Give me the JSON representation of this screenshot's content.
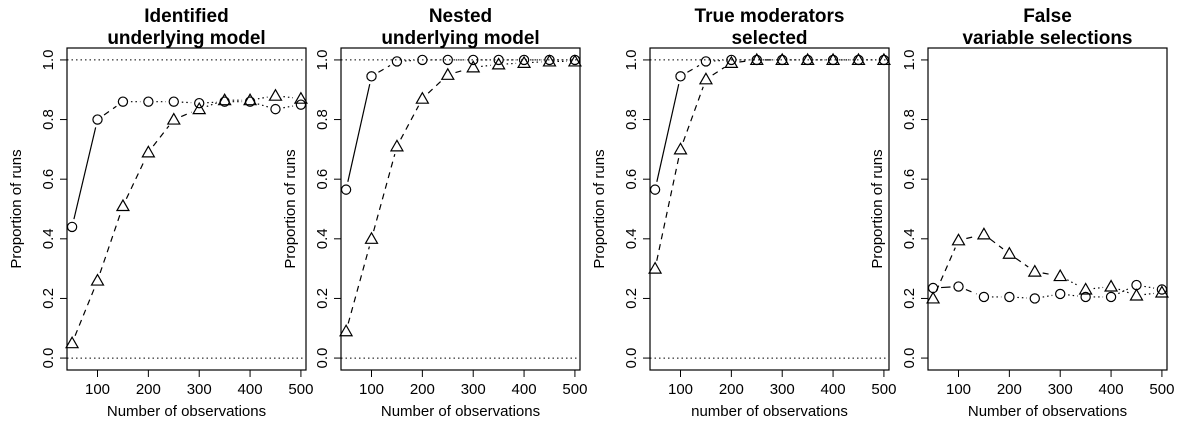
{
  "chart_data": [
    {
      "type": "line",
      "title_lines": [
        "Identified",
        "underlying model"
      ],
      "xlabel": "Number of observations",
      "ylabel": "Proportion of runs",
      "xlim": [
        40,
        510
      ],
      "ylim": [
        -0.04,
        1.04
      ],
      "x_ticks": [
        100,
        200,
        300,
        400,
        500
      ],
      "y_ticks": [
        "0.0",
        "0.2",
        "0.4",
        "0.6",
        "0.8",
        "1.0"
      ],
      "reference_lines": [
        0,
        1
      ],
      "grid": false,
      "series": [
        {
          "marker": "circle",
          "x": [
            50,
            100,
            150,
            200,
            250,
            300,
            350,
            400,
            450,
            500
          ],
          "y": [
            0.44,
            0.8,
            0.86,
            0.86,
            0.86,
            0.855,
            0.86,
            0.86,
            0.835,
            0.85
          ]
        },
        {
          "marker": "triangle",
          "x": [
            50,
            100,
            150,
            200,
            250,
            300,
            350,
            400,
            450,
            500
          ],
          "y": [
            0.05,
            0.26,
            0.51,
            0.69,
            0.8,
            0.835,
            0.865,
            0.865,
            0.88,
            0.87
          ]
        }
      ]
    },
    {
      "type": "line",
      "title_lines": [
        "Nested",
        "underlying model"
      ],
      "xlabel": "Number of observations",
      "ylabel": "Proportion of runs",
      "xlim": [
        40,
        510
      ],
      "ylim": [
        -0.04,
        1.04
      ],
      "x_ticks": [
        100,
        200,
        300,
        400,
        500
      ],
      "y_ticks": [
        "0.0",
        "0.2",
        "0.4",
        "0.6",
        "0.8",
        "1.0"
      ],
      "reference_lines": [
        0,
        1
      ],
      "grid": false,
      "series": [
        {
          "marker": "circle",
          "x": [
            50,
            100,
            150,
            200,
            250,
            300,
            350,
            400,
            450,
            500
          ],
          "y": [
            0.565,
            0.945,
            0.995,
            1.0,
            1.0,
            1.0,
            1.0,
            1.0,
            1.0,
            1.0
          ]
        },
        {
          "marker": "triangle",
          "x": [
            50,
            100,
            150,
            200,
            250,
            300,
            350,
            400,
            450,
            500
          ],
          "y": [
            0.09,
            0.4,
            0.71,
            0.87,
            0.95,
            0.975,
            0.985,
            0.99,
            0.995,
            0.995
          ]
        }
      ]
    },
    {
      "type": "line",
      "title_lines": [
        "True moderators",
        "selected"
      ],
      "xlabel": "number of observations",
      "ylabel": "Proportion of runs",
      "xlim": [
        40,
        510
      ],
      "ylim": [
        -0.04,
        1.04
      ],
      "x_ticks": [
        100,
        200,
        300,
        400,
        500
      ],
      "y_ticks": [
        "0.0",
        "0.2",
        "0.4",
        "0.6",
        "0.8",
        "1.0"
      ],
      "reference_lines": [
        0,
        1
      ],
      "grid": false,
      "series": [
        {
          "marker": "circle",
          "x": [
            50,
            100,
            150,
            200,
            250,
            300,
            350,
            400,
            450,
            500
          ],
          "y": [
            0.565,
            0.945,
            0.995,
            1.0,
            1.0,
            1.0,
            1.0,
            1.0,
            1.0,
            1.0
          ]
        },
        {
          "marker": "triangle",
          "x": [
            50,
            100,
            150,
            200,
            250,
            300,
            350,
            400,
            450,
            500
          ],
          "y": [
            0.3,
            0.7,
            0.935,
            0.99,
            1.0,
            1.0,
            1.0,
            1.0,
            1.0,
            1.0
          ]
        }
      ]
    },
    {
      "type": "line",
      "title_lines": [
        "False",
        "variable selections"
      ],
      "xlabel": "Number of observations",
      "ylabel": "Proportion of runs",
      "xlim": [
        40,
        510
      ],
      "ylim": [
        -0.04,
        1.04
      ],
      "x_ticks": [
        100,
        200,
        300,
        400,
        500
      ],
      "y_ticks": [
        "0.0",
        "0.2",
        "0.4",
        "0.6",
        "0.8",
        "1.0"
      ],
      "reference_lines": [],
      "grid": false,
      "series": [
        {
          "marker": "circle",
          "x": [
            50,
            100,
            150,
            200,
            250,
            300,
            350,
            400,
            450,
            500
          ],
          "y": [
            0.235,
            0.24,
            0.205,
            0.205,
            0.2,
            0.215,
            0.205,
            0.205,
            0.245,
            0.23
          ]
        },
        {
          "marker": "triangle",
          "x": [
            50,
            100,
            150,
            200,
            250,
            300,
            350,
            400,
            450,
            500
          ],
          "y": [
            0.2,
            0.395,
            0.415,
            0.35,
            0.29,
            0.275,
            0.23,
            0.24,
            0.21,
            0.22
          ]
        }
      ]
    }
  ]
}
